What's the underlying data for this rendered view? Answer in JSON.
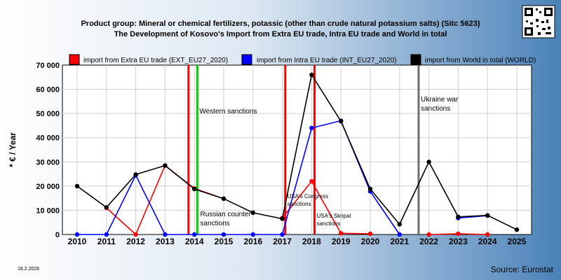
{
  "header": {
    "title_line1": "Product group: Mineral or chemical fertilizers, potassic (other than crude natural potassium salts) (Sitc 5623)",
    "title_line2": "The Development of Kosovo's Import from Extra EU trade, Intra EU trade and World in total"
  },
  "footer": {
    "date": "18.2.2026",
    "source": "Source: Eurostat"
  },
  "chart_data": {
    "type": "line",
    "ylabel": "* € / Year",
    "xlabel": "",
    "ylim": [
      0,
      70000
    ],
    "yticks": [
      0,
      10000,
      20000,
      30000,
      40000,
      50000,
      60000,
      70000
    ],
    "ytick_labels": [
      "0",
      "10 000",
      "20 000",
      "30 000",
      "40 000",
      "50 000",
      "60 000",
      "70 000"
    ],
    "x": [
      2010,
      2011,
      2012,
      2013,
      2014,
      2015,
      2016,
      2017,
      2018,
      2019,
      2020,
      2021,
      2022,
      2023,
      2024,
      2025
    ],
    "x_labels": [
      "2010",
      "2011",
      "2012",
      "2013",
      "2014",
      "2015",
      "2016",
      "2017",
      "2018",
      "2019",
      "2020",
      "2021",
      "2022",
      "2023",
      "2024",
      "2025"
    ],
    "grid": true,
    "legend_position": "top",
    "series": [
      {
        "name": "import from Extra EU trade (EXT_EU27_2020)",
        "color": "#ff0000",
        "values": [
          null,
          11000,
          0,
          28500,
          19000,
          14800,
          null,
          6800,
          22000,
          500,
          300,
          null,
          0,
          300,
          0,
          null
        ]
      },
      {
        "name": "import from Intra EU trade (INT_EU27_2020)",
        "color": "#0000ff",
        "values": [
          0,
          0,
          24500,
          0,
          0,
          0,
          0,
          0,
          44000,
          47000,
          17800,
          0,
          null,
          6800,
          7800,
          null
        ]
      },
      {
        "name": "import from World in total (WORLD)",
        "color": "#000000",
        "values": [
          20000,
          11200,
          24800,
          28500,
          18800,
          14800,
          9000,
          6500,
          66000,
          46800,
          18800,
          4200,
          30000,
          7300,
          7900,
          2000
        ]
      }
    ],
    "annotations": [
      {
        "x": 2013.8,
        "color": "#ff0000",
        "lines": []
      },
      {
        "x": 2014.1,
        "color": "#00d000",
        "lines": [
          "Western sanctions"
        ],
        "label_y": 50000
      },
      {
        "x": 2017.1,
        "color": "#ff0000",
        "lines": [
          "USA's Congress",
          "sanctions"
        ],
        "label_y": 15000
      },
      {
        "x": 2018.1,
        "color": "#ff0000",
        "lines": [
          "USA's Skripal",
          "sanctions"
        ],
        "label_y": 7000
      },
      {
        "x": 2021.65,
        "color": "#707070",
        "lines": [
          "Ukraine war",
          "sanctions"
        ],
        "label_y": 55000
      }
    ],
    "extra_label": {
      "lines": [
        "Russian counter-",
        "sanctions"
      ],
      "x": 2014.2,
      "y": 7500
    }
  }
}
